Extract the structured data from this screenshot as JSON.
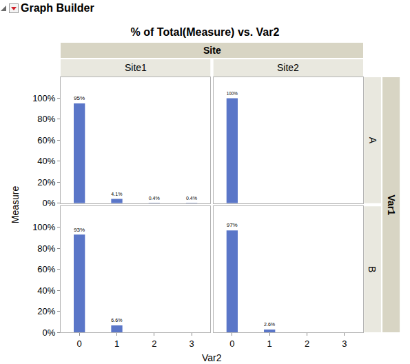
{
  "chart_data": {
    "type": "bar",
    "header": "Graph Builder",
    "title": "% of Total(Measure) vs. Var2",
    "x_label": "Var2",
    "y_label": "Measure",
    "column_facet": {
      "title": "Site",
      "labels": [
        "Site1",
        "Site2"
      ]
    },
    "row_facet": {
      "title": "Var1",
      "labels": [
        "A",
        "B"
      ]
    },
    "categories": [
      "0",
      "1",
      "2",
      "3"
    ],
    "color": "#5a76c8",
    "ylim": [
      0,
      120
    ],
    "yticks": [
      {
        "value": 0,
        "label": "0%"
      },
      {
        "value": 20,
        "label": "20%"
      },
      {
        "value": 40,
        "label": "40%"
      },
      {
        "value": 60,
        "label": "60%"
      },
      {
        "value": 80,
        "label": "80%"
      },
      {
        "value": 100,
        "label": "100%"
      }
    ],
    "grid": false,
    "data_labels": true,
    "panels": [
      {
        "column": "Site1",
        "row": "A",
        "values": [
          95,
          4.1,
          0.4,
          0.4
        ],
        "value_labels": [
          "95%",
          "4.1%",
          "0.4%",
          "0.4%"
        ]
      },
      {
        "column": "Site2",
        "row": "A",
        "values": [
          100,
          null,
          null,
          null
        ],
        "value_labels": [
          "100%",
          null,
          null,
          null
        ]
      },
      {
        "column": "Site1",
        "row": "B",
        "values": [
          93,
          6.6,
          null,
          null
        ],
        "value_labels": [
          "93%",
          "6.6%",
          null,
          null
        ]
      },
      {
        "column": "Site2",
        "row": "B",
        "values": [
          97,
          2.6,
          null,
          null
        ],
        "value_labels": [
          "97%",
          "2.6%",
          null,
          null
        ]
      }
    ]
  }
}
